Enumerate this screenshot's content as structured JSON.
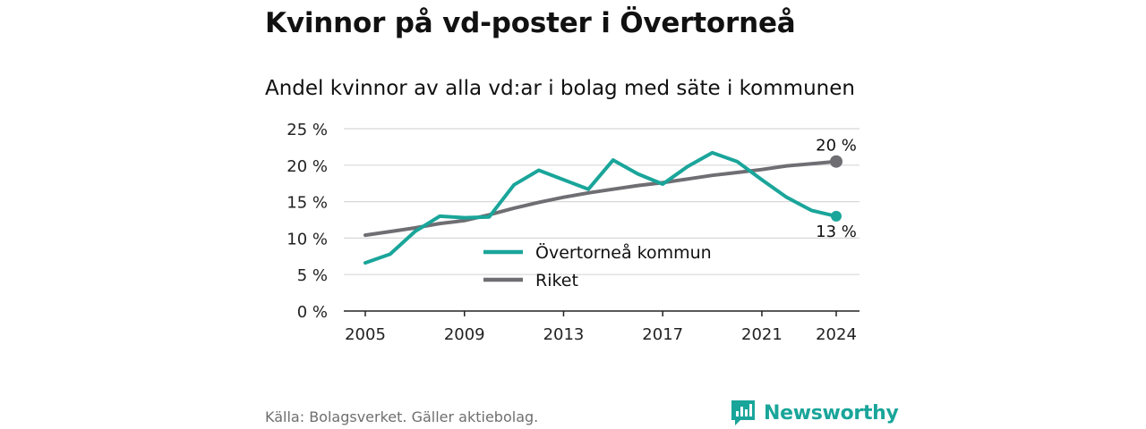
{
  "header": {
    "title": "Kvinnor på vd-poster i Övertorneå",
    "subtitle": "Andel kvinnor av alla vd:ar i bolag med säte i kommunen"
  },
  "footer": {
    "source": "Källa: Bolagsverket. Gäller aktiebolag.",
    "brand": "Newsworthy",
    "brand_icon": "bar-chart-logo-icon"
  },
  "colors": {
    "kommun": "#1aa59a",
    "riket": "#6e6e73",
    "grid": "#d8d8d8",
    "axis": "#222222",
    "brand": "#1aa59a"
  },
  "chart_data": {
    "type": "line",
    "ylim": [
      0,
      25
    ],
    "yticks": [
      0,
      5,
      10,
      15,
      20,
      25
    ],
    "ytick_labels": [
      "0 %",
      "5 %",
      "10 %",
      "15 %",
      "20 %",
      "25 %"
    ],
    "xlim": [
      2005,
      2024
    ],
    "xticks": [
      2005,
      2009,
      2013,
      2017,
      2021,
      2024
    ],
    "xtick_labels": [
      "2005",
      "2009",
      "2013",
      "2017",
      "2021",
      "2024"
    ],
    "grid": true,
    "legend_position": "center",
    "x": [
      2005,
      2006,
      2007,
      2008,
      2009,
      2010,
      2011,
      2012,
      2013,
      2014,
      2015,
      2016,
      2017,
      2018,
      2019,
      2020,
      2021,
      2022,
      2023,
      2024
    ],
    "series": [
      {
        "name": "Övertorneå kommun",
        "color": "#1aa59a",
        "values": [
          6.6,
          7.8,
          10.9,
          13.0,
          12.8,
          12.9,
          17.3,
          19.3,
          18.0,
          16.7,
          20.7,
          18.8,
          17.4,
          19.8,
          21.7,
          20.5,
          18.0,
          15.6,
          13.8,
          13.0
        ],
        "end_label": "13 %"
      },
      {
        "name": "Riket",
        "color": "#6e6e73",
        "values": [
          10.4,
          10.9,
          11.4,
          12.0,
          12.4,
          13.2,
          14.1,
          14.9,
          15.6,
          16.2,
          16.7,
          17.2,
          17.6,
          18.1,
          18.6,
          19.0,
          19.4,
          19.9,
          20.2,
          20.5
        ],
        "end_label": "20 %"
      }
    ]
  }
}
